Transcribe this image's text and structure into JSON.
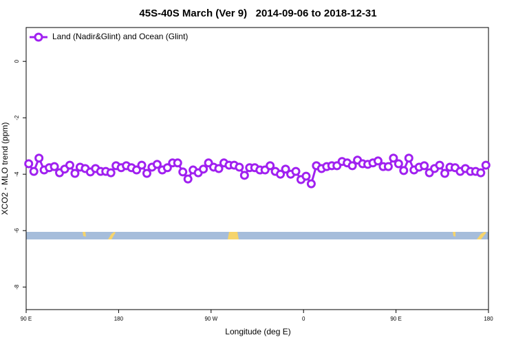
{
  "chart_data": {
    "type": "line",
    "title": "45S-40S March (Ver 9)   2014-09-06 to 2018-12-31",
    "xlabel": "Longitude (deg E)",
    "ylabel": "XCO2 - MLO trend (ppm)",
    "x": [
      92.5,
      97.5,
      102.5,
      107.5,
      112.5,
      117.5,
      122.5,
      127.5,
      132.5,
      137.5,
      142.5,
      147.5,
      152.5,
      157.5,
      162.5,
      167.5,
      172.5,
      177.5,
      182.5,
      187.5,
      192.5,
      197.5,
      202.5,
      207.5,
      212.5,
      217.5,
      222.5,
      227.5,
      232.5,
      237.5,
      242.5,
      247.5,
      252.5,
      257.5,
      262.5,
      267.5,
      272.5,
      277.5,
      282.5,
      287.5,
      292.5,
      297.5,
      302.5,
      307.5,
      312.5,
      317.5,
      322.5,
      327.5,
      332.5,
      337.5,
      342.5,
      347.5,
      352.5,
      357.5,
      362.5,
      367.5,
      372.5,
      377.5,
      382.5,
      387.5,
      392.5,
      397.5,
      402.5,
      407.5,
      412.5,
      417.5,
      422.5,
      427.5,
      432.5,
      437.5,
      442.5,
      447.5,
      452.5,
      457.5,
      462.5,
      467.5,
      472.5,
      477.5,
      482.5,
      487.5,
      492.5,
      497.5,
      502.5,
      507.5,
      512.5,
      517.5,
      522.5,
      527.5,
      532.5,
      537.5
    ],
    "series": [
      {
        "name": "Land (Nadir&Glint) and Ocean (Glint)",
        "color": "#a020f0",
        "values": [
          -3.63,
          -3.9,
          -3.43,
          -3.85,
          -3.77,
          -3.73,
          -3.95,
          -3.82,
          -3.68,
          -3.97,
          -3.75,
          -3.8,
          -3.92,
          -3.8,
          -3.9,
          -3.9,
          -3.95,
          -3.7,
          -3.77,
          -3.7,
          -3.77,
          -3.85,
          -3.68,
          -3.97,
          -3.75,
          -3.65,
          -3.85,
          -3.77,
          -3.6,
          -3.6,
          -3.92,
          -4.17,
          -3.85,
          -3.95,
          -3.82,
          -3.6,
          -3.75,
          -3.8,
          -3.6,
          -3.68,
          -3.68,
          -3.75,
          -4.04,
          -3.77,
          -3.77,
          -3.85,
          -3.85,
          -3.7,
          -3.9,
          -4.0,
          -3.82,
          -4.0,
          -3.9,
          -4.19,
          -4.07,
          -4.34,
          -3.7,
          -3.8,
          -3.73,
          -3.7,
          -3.7,
          -3.55,
          -3.6,
          -3.7,
          -3.5,
          -3.63,
          -3.65,
          -3.6,
          -3.53,
          -3.73,
          -3.73,
          -3.43,
          -3.63,
          -3.87,
          -3.43,
          -3.85,
          -3.75,
          -3.7,
          -3.95,
          -3.8,
          -3.68,
          -3.97,
          -3.75,
          -3.77,
          -3.9,
          -3.8,
          -3.9,
          -3.9,
          -3.95,
          -3.68
        ]
      }
    ],
    "xlim": [
      90,
      540
    ],
    "xticks": [
      {
        "value": 90,
        "label": "90 E"
      },
      180,
      {
        "value": 270,
        "label": "90 W"
      },
      {
        "value": 360,
        "label": "0"
      },
      {
        "value": 450,
        "label": "90 E"
      },
      {
        "value": 540,
        "label": "180"
      }
    ],
    "ylim": [
      -8.8,
      1.2
    ],
    "yticks": [
      0,
      -2,
      -4,
      -6,
      -8
    ],
    "grid": false,
    "legend": "upper left"
  }
}
